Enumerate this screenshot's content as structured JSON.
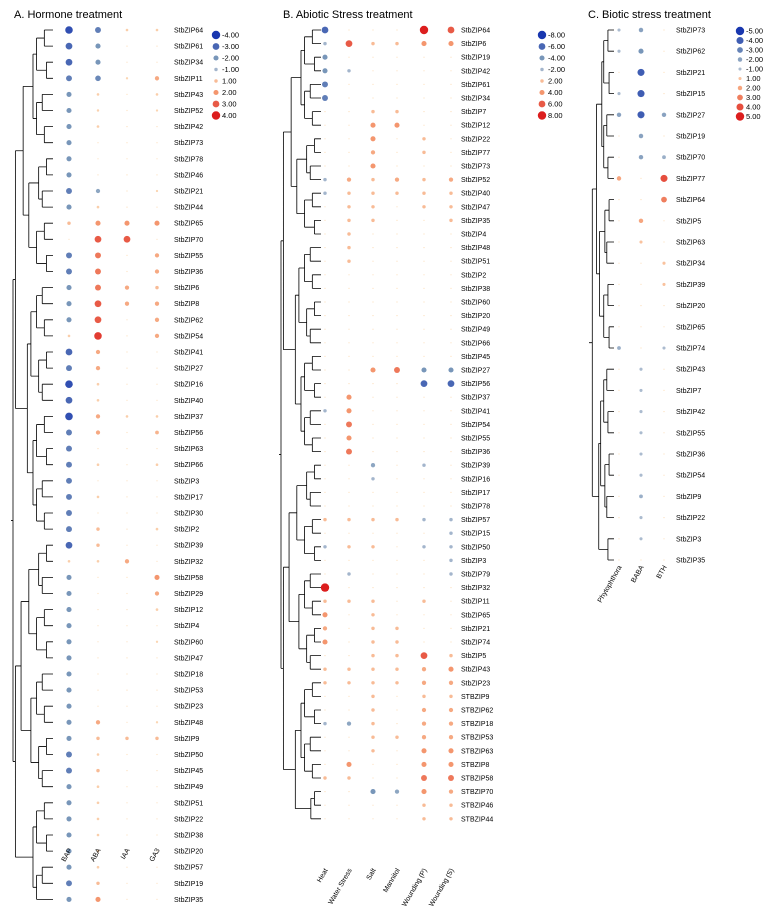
{
  "chart_data": [
    {
      "type": "scatter",
      "panel_id": "A",
      "title": "A.  Hormone treatment",
      "conditions": [
        "BAP",
        "ABA",
        "IAA",
        "GA3"
      ],
      "genes": [
        "StbZIP64",
        "StbZIP61",
        "StbZIP34",
        "StbZIP11",
        "StbZIP43",
        "StbZIP52",
        "StbZIP42",
        "StbZIP73",
        "StbZIP78",
        "StbZIP46",
        "StbZIP21",
        "StbZIP44",
        "StbZIP65",
        "StbZIP70",
        "StbZIP55",
        "StbZIP36",
        "StbZIP6",
        "StbZIP8",
        "StbZIP62",
        "StbZIP54",
        "StbZIP41",
        "StbZIP27",
        "StbZIP16",
        "StbZIP40",
        "StbZIP37",
        "StbZIP56",
        "StbZIP63",
        "StbZIP66",
        "StbZIP3",
        "StbZIP17",
        "StbZIP30",
        "StbZIP2",
        "StbZIP39",
        "StbZIP32",
        "StbZIP58",
        "StbZIP29",
        "StbZIP12",
        "StbZIP4",
        "StbZIP60",
        "StbZIP47",
        "StbZIP18",
        "StbZIP53",
        "StbZIP23",
        "StbZIP48",
        "StbZIP9",
        "StbZIP50",
        "StbZIP45",
        "StbZIP49",
        "StbZIP51",
        "StbZIP22",
        "StbZIP38",
        "StbZIP20",
        "StbZIP57",
        "StbZIP19",
        "StbZIP35"
      ],
      "legend": [
        -4.0,
        -3.0,
        -2.0,
        -1.0,
        1.0,
        2.0,
        3.0,
        4.0
      ],
      "legend_labels": [
        "-4.00",
        "-3.00",
        "-2.00",
        "-1.00",
        "1.00",
        "2.00",
        "3.00",
        "4.00"
      ],
      "values": [
        [
          -3.5,
          -2.5,
          0.5,
          0.5
        ],
        [
          -3,
          -2,
          0,
          0
        ],
        [
          -3,
          -2,
          0,
          0
        ],
        [
          -2.5,
          -2.3,
          0.3,
          1.5
        ],
        [
          -2,
          0.5,
          0,
          0.5
        ],
        [
          -2,
          0.4,
          0,
          0.3
        ],
        [
          -2,
          0.5,
          0,
          0
        ],
        [
          -2,
          0,
          0,
          0
        ],
        [
          -2,
          0,
          0,
          0
        ],
        [
          -2,
          0,
          0,
          0
        ],
        [
          -2.5,
          -1.5,
          0,
          0.3
        ],
        [
          -2,
          0.5,
          0,
          0
        ],
        [
          1,
          2,
          2,
          2
        ],
        [
          0,
          3,
          3,
          0
        ],
        [
          -2.5,
          2.5,
          0,
          1.5
        ],
        [
          -2.5,
          2.5,
          0,
          1.5
        ],
        [
          -2,
          2.5,
          1.5,
          1
        ],
        [
          -2,
          3,
          1.5,
          1.5
        ],
        [
          -2,
          3,
          0,
          1.5
        ],
        [
          0.5,
          3.5,
          0,
          1.5
        ],
        [
          -3,
          1.5,
          0,
          0
        ],
        [
          -2.5,
          1.5,
          0,
          0
        ],
        [
          -3.5,
          0.5,
          0,
          0
        ],
        [
          -3,
          0.5,
          0,
          0
        ],
        [
          -3.5,
          1.5,
          0.5,
          0.5
        ],
        [
          -2.5,
          1.5,
          0,
          1.2
        ],
        [
          -2.5,
          0,
          0,
          0
        ],
        [
          -2.5,
          0.5,
          0,
          0.5
        ],
        [
          -2.5,
          0,
          0,
          0
        ],
        [
          -2.5,
          0.5,
          0,
          0
        ],
        [
          -2.5,
          0,
          0,
          0
        ],
        [
          -2.5,
          1,
          0,
          0.5
        ],
        [
          -3,
          1,
          0,
          0
        ],
        [
          0.5,
          0.5,
          1.5,
          0
        ],
        [
          -2,
          0,
          0,
          2
        ],
        [
          -2,
          0,
          0,
          1.5
        ],
        [
          -2,
          0,
          0,
          0.5
        ],
        [
          -2,
          0,
          0,
          0
        ],
        [
          -2,
          0,
          0,
          0.3
        ],
        [
          -2,
          0,
          0,
          0
        ],
        [
          -2,
          0,
          0,
          0
        ],
        [
          -2,
          0,
          0,
          0
        ],
        [
          -2,
          0,
          0,
          0
        ],
        [
          -2,
          1.5,
          0,
          0.3
        ],
        [
          -2,
          1,
          1,
          1
        ],
        [
          -2.5,
          0.5,
          0,
          0
        ],
        [
          -2.5,
          1,
          0,
          0
        ],
        [
          -2,
          0.5,
          0,
          0
        ],
        [
          -2,
          0.5,
          0,
          0
        ],
        [
          -2,
          0.5,
          0,
          0
        ],
        [
          -2,
          0.5,
          0,
          0
        ],
        [
          -2,
          0.5,
          0,
          0
        ],
        [
          -2,
          0.5,
          0,
          0
        ],
        [
          -2.5,
          1,
          0,
          0
        ],
        [
          -2,
          2,
          0,
          0
        ]
      ]
    },
    {
      "type": "scatter",
      "panel_id": "B",
      "title": "B. Abiotic Stress treatment",
      "conditions": [
        "Heat",
        "Water Stress",
        "Salt",
        "Mannitol",
        "Wounding (P)",
        "Wounding (S)"
      ],
      "genes": [
        "StbZIP64",
        "StbZIP6",
        "StbZIP19",
        "StbZIP42",
        "StbZIP61",
        "StbZIP34",
        "StbZIP7",
        "StbZIP12",
        "StbZIP22",
        "StbZIP77",
        "StbZIP73",
        "StbZIP52",
        "StbZIP40",
        "StbZIP47",
        "StbZIP35",
        "StbZIP4",
        "StbZIP48",
        "StbZIP51",
        "StbZIP2",
        "StbZIP38",
        "StbZIP60",
        "StbZIP20",
        "StbZIP49",
        "StbZIP66",
        "StbZIP45",
        "StbZIP27",
        "StbZIP56",
        "StbZIP37",
        "StbZIP41",
        "StbZIP54",
        "StbZIP55",
        "StbZIP36",
        "StbZIP39",
        "StbZIP16",
        "StbZIP17",
        "StbZIP78",
        "StbZIP57",
        "StbZIP15",
        "StbZIP50",
        "StbZIP3",
        "StbZIP79",
        "StbZIP32",
        "StbZIP11",
        "StbZIP65",
        "StbZIP21",
        "StbZIP74",
        "StbZIP5",
        "StbZIP43",
        "StbZIP23",
        "STBZIP9",
        "STBZIP62",
        "STBZIP18",
        "STBZIP53",
        "STBZIP63",
        "STBZIP8",
        "STBZIP58",
        "STBZIP70",
        "STBZIP46",
        "STBZIP44"
      ],
      "legend": [
        -8.0,
        -6.0,
        -4.0,
        -2.0,
        2.0,
        4.0,
        6.0,
        8.0
      ],
      "legend_labels": [
        "-8.00",
        "-6.00",
        "-4.00",
        "-2.00",
        "2.00",
        "4.00",
        "6.00",
        "8.00"
      ],
      "values": [
        [
          -6,
          0,
          0,
          0,
          8,
          6
        ],
        [
          -2,
          6,
          2,
          2,
          4,
          4
        ],
        [
          -4,
          0,
          0,
          0,
          0,
          0
        ],
        [
          -4,
          -2,
          0,
          0,
          0,
          0
        ],
        [
          -5,
          0,
          0,
          0,
          0,
          0
        ],
        [
          -5,
          0,
          0,
          0,
          0,
          0
        ],
        [
          0,
          0,
          2,
          2,
          0,
          0
        ],
        [
          0,
          0,
          4,
          4,
          0,
          0
        ],
        [
          0,
          0,
          4,
          0,
          2,
          0
        ],
        [
          0,
          0,
          3,
          0,
          2,
          0
        ],
        [
          0,
          0,
          4,
          0,
          0,
          0
        ],
        [
          -2,
          3,
          2,
          3,
          2,
          3
        ],
        [
          -2,
          2,
          2,
          2,
          2,
          2
        ],
        [
          0,
          2,
          2,
          0,
          2,
          2
        ],
        [
          0,
          2,
          2,
          0,
          0,
          2
        ],
        [
          0,
          2,
          0,
          0,
          0,
          0
        ],
        [
          0,
          2,
          0,
          0,
          0,
          0
        ],
        [
          0,
          2,
          0,
          0,
          0,
          0
        ],
        [
          0,
          0,
          0,
          0,
          0,
          0
        ],
        [
          0,
          0,
          0,
          0,
          0,
          0
        ],
        [
          0,
          0,
          0,
          0,
          0,
          0
        ],
        [
          0,
          0,
          0,
          0,
          0,
          0
        ],
        [
          0,
          0,
          0,
          0,
          0,
          0
        ],
        [
          0,
          0,
          0,
          0,
          0,
          0
        ],
        [
          0,
          0,
          0,
          0,
          0,
          0
        ],
        [
          0,
          0,
          4,
          5,
          -4,
          -4
        ],
        [
          0,
          0,
          0,
          0,
          -6,
          -6
        ],
        [
          0,
          4,
          0,
          0,
          0,
          0
        ],
        [
          -2,
          4,
          0,
          0,
          0,
          0
        ],
        [
          0,
          5,
          0,
          0,
          0,
          0
        ],
        [
          0,
          4,
          0,
          0,
          0,
          0
        ],
        [
          0,
          5,
          0,
          0,
          0,
          0
        ],
        [
          0,
          0,
          -3,
          0,
          -2,
          0
        ],
        [
          0,
          0,
          -2,
          0,
          0,
          0
        ],
        [
          0,
          0,
          0,
          0,
          0,
          0
        ],
        [
          0,
          0,
          0,
          0,
          0,
          0
        ],
        [
          2,
          2,
          2,
          2,
          -2,
          -2
        ],
        [
          0,
          0,
          0,
          0,
          0,
          -2
        ],
        [
          -2,
          2,
          2,
          0,
          -2,
          -2
        ],
        [
          0,
          0,
          0,
          0,
          0,
          -2
        ],
        [
          0,
          -2,
          0,
          0,
          0,
          -2
        ],
        [
          8,
          0,
          0,
          0,
          0,
          0
        ],
        [
          2,
          2,
          2,
          0,
          2,
          0
        ],
        [
          4,
          0,
          2,
          0,
          0,
          0
        ],
        [
          3,
          0,
          2,
          2,
          0,
          0
        ],
        [
          4,
          0,
          2,
          2,
          0,
          0
        ],
        [
          0,
          0,
          2,
          2,
          6,
          2
        ],
        [
          2,
          2,
          2,
          2,
          3,
          4
        ],
        [
          2,
          2,
          2,
          2,
          3,
          3
        ],
        [
          0,
          0,
          2,
          0,
          2,
          2
        ],
        [
          0,
          0,
          2,
          0,
          3,
          3
        ],
        [
          -2,
          -3,
          2,
          0,
          3,
          3
        ],
        [
          0,
          0,
          2,
          2,
          3,
          3
        ],
        [
          0,
          0,
          2,
          0,
          4,
          4
        ],
        [
          0,
          4,
          0,
          0,
          4,
          4
        ],
        [
          2,
          2,
          0,
          0,
          5,
          5
        ],
        [
          0,
          0,
          -4,
          -3,
          4,
          3
        ],
        [
          0,
          0,
          0,
          0,
          2,
          2
        ],
        [
          0,
          0,
          0,
          0,
          2,
          2
        ]
      ]
    },
    {
      "type": "scatter",
      "panel_id": "C",
      "title": "C.  Biotic stress treatment",
      "conditions": [
        "Phytophthora",
        "BABA",
        "BTH"
      ],
      "genes": [
        "StbZIP73",
        "StbZIP62",
        "StbZIP21",
        "StbZIP15",
        "StbZIP27",
        "StbZIP19",
        "StbZIP70",
        "StbZIP77",
        "StbZIP64",
        "StbZIP5",
        "StbZIP63",
        "StbZIP34",
        "StbZIP39",
        "StbZIP20",
        "StbZIP65",
        "StbZIP74",
        "StbZIP43",
        "StbZIP7",
        "StbZIP42",
        "StbZIP55",
        "StbZIP36",
        "StbZIP54",
        "StbZIP9",
        "StbZIP22",
        "StbZIP3",
        "StbZIP35"
      ],
      "legend": [
        -5.0,
        -4.0,
        -3.0,
        -2.0,
        -1.0,
        1.0,
        2.0,
        3.0,
        4.0,
        5.0
      ],
      "legend_labels": [
        "-5.00",
        "-4.00",
        "-3.00",
        "-2.00",
        "-1.00",
        "1.00",
        "2.00",
        "3.00",
        "4.00",
        "5.00"
      ],
      "values": [
        [
          -1,
          -2,
          0
        ],
        [
          -1,
          -2.5,
          0
        ],
        [
          0,
          -4,
          0
        ],
        [
          -1,
          -4,
          0
        ],
        [
          -2,
          -4,
          -2
        ],
        [
          0,
          -2,
          0
        ],
        [
          0,
          -2,
          -1.5
        ],
        [
          2,
          0,
          4
        ],
        [
          0,
          0,
          3
        ],
        [
          0,
          2,
          0
        ],
        [
          0,
          1,
          0
        ],
        [
          0,
          0,
          1
        ],
        [
          0,
          0,
          1
        ],
        [
          0,
          0,
          0
        ],
        [
          0,
          0,
          0
        ],
        [
          -1.5,
          0,
          -1
        ],
        [
          0,
          -1,
          0
        ],
        [
          0,
          -1,
          0
        ],
        [
          0,
          -1,
          0
        ],
        [
          0,
          -1,
          0
        ],
        [
          0,
          -1,
          0
        ],
        [
          0,
          -1,
          0
        ],
        [
          0,
          -1.5,
          0
        ],
        [
          0,
          -1,
          0
        ],
        [
          0,
          -1,
          0
        ],
        [
          0,
          0,
          0
        ]
      ]
    }
  ]
}
